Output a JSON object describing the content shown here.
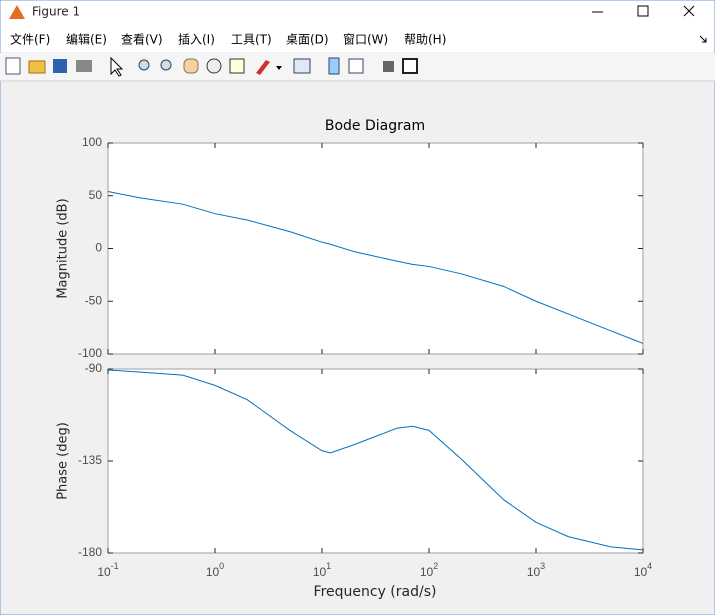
{
  "window": {
    "title": "Figure 1",
    "menus": [
      "文件(F)",
      "编辑(E)",
      "查看(V)",
      "插入(I)",
      "工具(T)",
      "桌面(D)",
      "窗口(W)",
      "帮助(H)"
    ]
  },
  "chart_data": [
    {
      "type": "line",
      "title": "Bode Diagram",
      "ylabel": "Magnitude (dB)",
      "xscale": "log",
      "color": "#0072bd",
      "x": [
        0.1,
        0.2,
        0.5,
        1,
        2,
        5,
        10,
        12,
        20,
        50,
        70,
        100,
        200,
        500,
        1000,
        2000,
        5000,
        10000
      ],
      "values": [
        54,
        48,
        42,
        33,
        27,
        16,
        6,
        4,
        -3,
        -12,
        -15,
        -17,
        -24,
        -36,
        -50,
        -62,
        -78,
        -90
      ],
      "xlim": [
        0.1,
        10000
      ],
      "xticks": [
        0.1,
        1,
        10,
        100,
        1000,
        10000
      ],
      "ylim": [
        -100,
        100
      ],
      "yticks": [
        -100,
        -50,
        0,
        50,
        100
      ]
    },
    {
      "type": "line",
      "ylabel": "Phase (deg)",
      "xlabel": "Frequency  (rad/s)",
      "xscale": "log",
      "color": "#0072bd",
      "x": [
        0.1,
        0.2,
        0.5,
        1,
        2,
        5,
        10,
        12,
        20,
        50,
        70,
        100,
        200,
        500,
        1000,
        2000,
        5000,
        10000
      ],
      "values": [
        -90.5,
        -91.5,
        -93,
        -98,
        -105,
        -120,
        -130,
        -131,
        -127,
        -119,
        -118,
        -120,
        -134,
        -154,
        -165,
        -172,
        -177,
        -178.5
      ],
      "xlim": [
        0.1,
        10000
      ],
      "xticks": [
        {
          "value": 0.1,
          "label": "10",
          "exponent": "-1"
        },
        {
          "value": 1,
          "label": "10",
          "exponent": "0"
        },
        {
          "value": 10,
          "label": "10",
          "exponent": "1"
        },
        {
          "value": 100,
          "label": "10",
          "exponent": "2"
        },
        {
          "value": 1000,
          "label": "10",
          "exponent": "3"
        },
        {
          "value": 10000,
          "label": "10",
          "exponent": "4"
        }
      ],
      "ylim": [
        -180,
        -90
      ],
      "yticks": [
        -180,
        -135,
        -90
      ]
    }
  ]
}
